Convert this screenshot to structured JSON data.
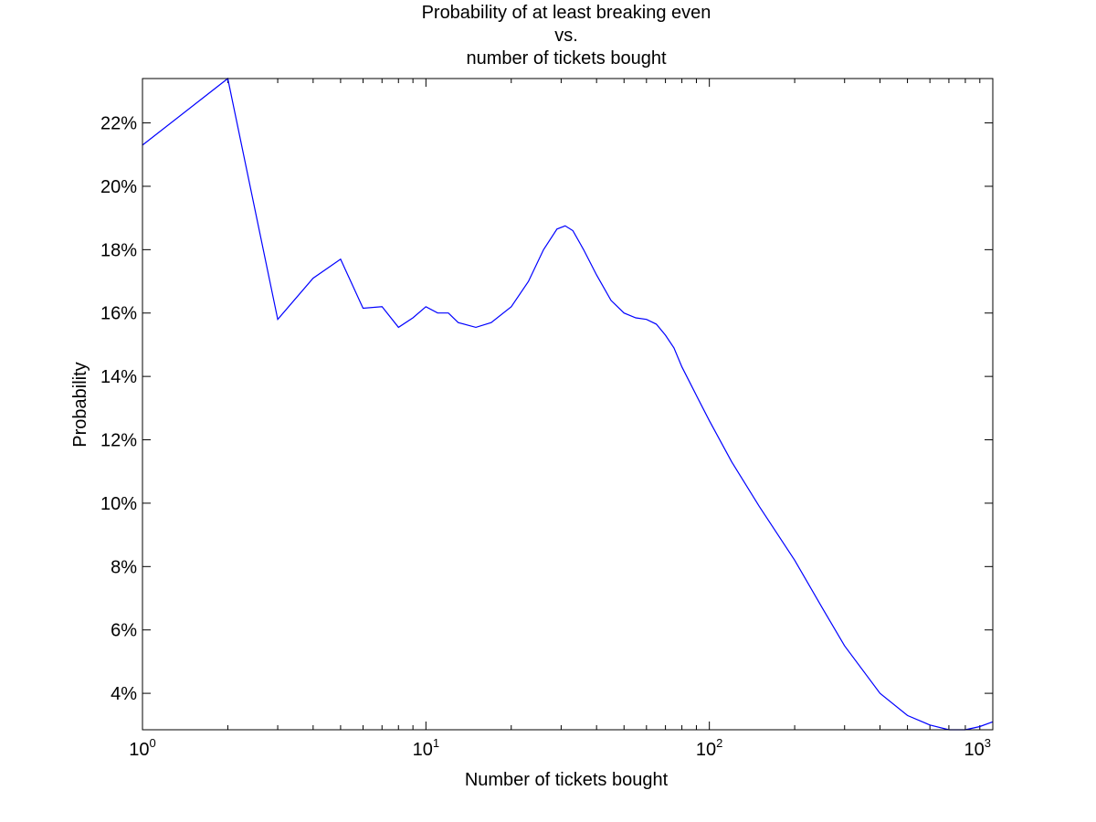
{
  "chart_data": {
    "type": "line",
    "title": [
      "Probability of at least breaking even",
      "vs.",
      "number of tickets bought"
    ],
    "xlabel": "Number of tickets bought",
    "ylabel": "Probability",
    "xscale": "log",
    "xlim": [
      1,
      1000
    ],
    "ylim": [
      2.85,
      23.4
    ],
    "grid": false,
    "legend": "none",
    "line_color": "#0000ff",
    "x_ticks": [
      {
        "base": "10",
        "exp": "0",
        "value": 1
      },
      {
        "base": "10",
        "exp": "1",
        "value": 10
      },
      {
        "base": "10",
        "exp": "2",
        "value": 100
      },
      {
        "base": "10",
        "exp": "3",
        "value": 1000
      }
    ],
    "y_ticks": [
      {
        "label": "4%",
        "value": 4
      },
      {
        "label": "6%",
        "value": 6
      },
      {
        "label": "8%",
        "value": 8
      },
      {
        "label": "10%",
        "value": 10
      },
      {
        "label": "12%",
        "value": 12
      },
      {
        "label": "14%",
        "value": 14
      },
      {
        "label": "16%",
        "value": 16
      },
      {
        "label": "18%",
        "value": 18
      },
      {
        "label": "20%",
        "value": 20
      },
      {
        "label": "22%",
        "value": 22
      }
    ],
    "series": [
      {
        "x": [
          1,
          2,
          3,
          4,
          5,
          6,
          7,
          8,
          9,
          10,
          11,
          12,
          13,
          15,
          17,
          20,
          23,
          26,
          29,
          31,
          33,
          36,
          40,
          45,
          50,
          55,
          60,
          65,
          70,
          75,
          80,
          90,
          100,
          120,
          150,
          200,
          250,
          300,
          400,
          500,
          600,
          700,
          800,
          900,
          1000
        ],
        "y": [
          21.3,
          23.4,
          15.8,
          17.1,
          17.7,
          16.15,
          16.2,
          15.55,
          15.85,
          16.2,
          16.0,
          16.0,
          15.7,
          15.55,
          15.7,
          16.2,
          17.0,
          18.0,
          18.65,
          18.75,
          18.6,
          18.0,
          17.2,
          16.4,
          16.0,
          15.85,
          15.8,
          15.65,
          15.3,
          14.9,
          14.3,
          13.4,
          12.6,
          11.3,
          9.9,
          8.2,
          6.7,
          5.5,
          4.0,
          3.3,
          3.0,
          2.85,
          2.85,
          2.95,
          3.1
        ]
      }
    ]
  }
}
